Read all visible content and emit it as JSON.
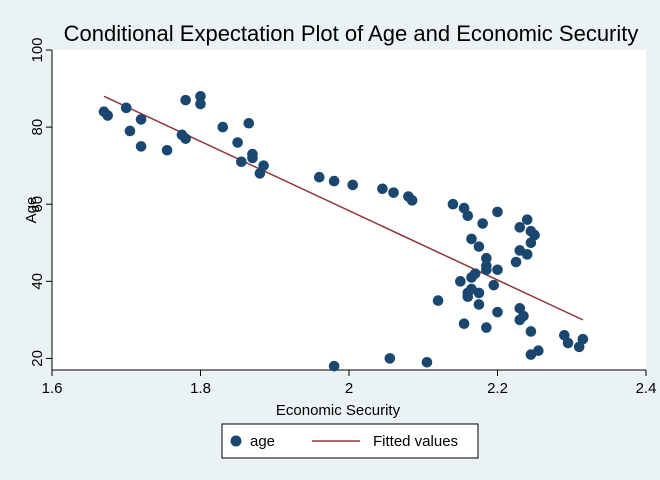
{
  "chart_data": {
    "type": "scatter",
    "title": "Conditional Expectation Plot of Age and Economic Security",
    "xlabel": "Economic Security",
    "ylabel": "Age",
    "xlim": [
      1.6,
      2.4
    ],
    "ylim": [
      17,
      100
    ],
    "xticks": [
      1.6,
      1.8,
      2.0,
      2.2,
      2.4
    ],
    "yticks": [
      20,
      40,
      60,
      80,
      100
    ],
    "xtick_labels": [
      "1.6",
      "1.8",
      "2",
      "2.2",
      "2.4"
    ],
    "ytick_labels": [
      "20",
      "40",
      "60",
      "80",
      "100"
    ],
    "grid": false,
    "legend_position": "bottom",
    "colors": {
      "background": "#eaf2f3",
      "plot_area": "#ffffff",
      "title": "#1a2e5a",
      "points": "#1a476f",
      "fit_line": "#90353b",
      "axis": "#000000"
    },
    "series": [
      {
        "name": "age",
        "kind": "scatter",
        "x": [
          1.67,
          1.675,
          1.7,
          1.705,
          1.72,
          1.72,
          1.755,
          1.775,
          1.78,
          1.78,
          1.8,
          1.8,
          1.83,
          1.85,
          1.855,
          1.865,
          1.87,
          1.87,
          1.88,
          1.885,
          1.96,
          1.98,
          2.005,
          2.045,
          2.06,
          2.08,
          2.085,
          2.14,
          2.155,
          2.16,
          2.165,
          2.175,
          2.18,
          2.2,
          2.15,
          2.165,
          2.17,
          2.185,
          2.225,
          2.23,
          2.24,
          2.245,
          2.25,
          2.245,
          2.24,
          2.23,
          2.165,
          2.175,
          2.185,
          2.185,
          2.2,
          2.16,
          2.16,
          2.12,
          2.195,
          2.175,
          2.2,
          2.23,
          2.155,
          2.185,
          2.235,
          2.23,
          2.245,
          2.29,
          2.295,
          2.31,
          2.315,
          2.245,
          2.255,
          1.98,
          2.055,
          2.105
        ],
        "y": [
          84,
          83,
          85,
          79,
          82,
          75,
          74,
          78,
          77,
          87,
          88,
          86,
          80,
          76,
          71,
          81,
          73,
          72,
          68,
          70,
          67,
          66,
          65,
          64,
          63,
          62,
          61,
          60,
          59,
          57,
          51,
          49,
          55,
          58,
          40,
          41,
          42,
          43,
          45,
          54,
          56,
          53,
          52,
          50,
          47,
          48,
          38,
          37,
          44,
          46,
          43,
          37,
          36,
          35,
          39,
          34,
          32,
          30,
          29,
          28,
          31,
          33,
          27,
          26,
          24,
          23,
          25,
          21,
          22,
          18,
          20,
          19
        ]
      },
      {
        "name": "Fitted values",
        "kind": "line",
        "x": [
          1.67,
          2.315
        ],
        "y": [
          88,
          30
        ]
      }
    ]
  }
}
